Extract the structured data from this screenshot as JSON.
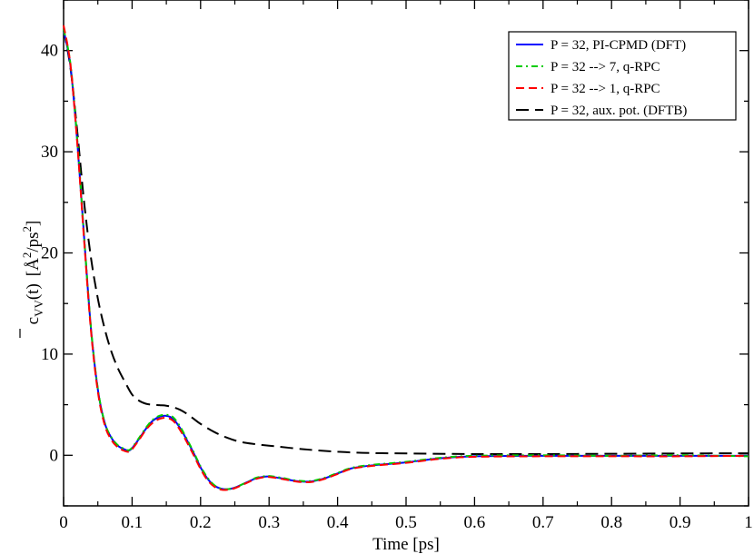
{
  "chart_data": {
    "type": "line",
    "xlabel": "Time [ps]",
    "ylabel": {
      "base": "c",
      "sub": "VV",
      "arg": "(t)",
      "unit_open": "[",
      "unit_angstrom": "Å",
      "unit_sup1": "2",
      "unit_mid": "/ps",
      "unit_sup2": "2",
      "unit_close": "]"
    },
    "xlim": [
      0,
      1
    ],
    "ylim": [
      -5,
      45
    ],
    "x_ticks": [
      0,
      0.1,
      0.2,
      0.3,
      0.4,
      0.5,
      0.6,
      0.7,
      0.8,
      0.9,
      1
    ],
    "x_tick_labels": [
      "0",
      "0.1",
      "0.2",
      "0.3",
      "0.4",
      "0.5",
      "0.6",
      "0.7",
      "0.8",
      "0.9",
      "1"
    ],
    "y_ticks": [
      0,
      10,
      20,
      30,
      40
    ],
    "y_tick_labels": [
      "0",
      "10",
      "20",
      "30",
      "40"
    ],
    "grid": false,
    "legend_position": "top-right",
    "series": [
      {
        "name": "P = 32, PI-CPMD (DFT)",
        "color": "#0000ff",
        "dash": "solid",
        "x": [
          0,
          0.01,
          0.02,
          0.03,
          0.04,
          0.05,
          0.06,
          0.07,
          0.08,
          0.09,
          0.095,
          0.1,
          0.11,
          0.12,
          0.13,
          0.14,
          0.15,
          0.16,
          0.17,
          0.18,
          0.19,
          0.2,
          0.21,
          0.22,
          0.23,
          0.24,
          0.25,
          0.26,
          0.27,
          0.28,
          0.29,
          0.3,
          0.32,
          0.34,
          0.36,
          0.38,
          0.4,
          0.42,
          0.45,
          0.5,
          0.55,
          0.6,
          0.7,
          0.8,
          0.9,
          1.0
        ],
        "values": [
          42.0,
          38.5,
          31.0,
          21.5,
          12.5,
          6.5,
          3.2,
          1.7,
          0.9,
          0.55,
          0.45,
          0.7,
          1.6,
          2.6,
          3.4,
          3.8,
          3.9,
          3.6,
          2.7,
          1.5,
          0.2,
          -1.2,
          -2.3,
          -3.0,
          -3.3,
          -3.35,
          -3.2,
          -2.9,
          -2.6,
          -2.3,
          -2.15,
          -2.1,
          -2.3,
          -2.55,
          -2.6,
          -2.3,
          -1.8,
          -1.3,
          -1.0,
          -0.7,
          -0.3,
          -0.1,
          -0.05,
          -0.05,
          -0.05,
          -0.05
        ]
      },
      {
        "name": "P = 32 --> 7, q-RPC",
        "color": "#00cc00",
        "dash": "dashdot",
        "x": [
          0,
          0.01,
          0.02,
          0.03,
          0.04,
          0.05,
          0.06,
          0.07,
          0.08,
          0.09,
          0.095,
          0.1,
          0.11,
          0.12,
          0.13,
          0.14,
          0.15,
          0.16,
          0.17,
          0.18,
          0.19,
          0.2,
          0.21,
          0.22,
          0.23,
          0.24,
          0.25,
          0.26,
          0.27,
          0.28,
          0.29,
          0.3,
          0.32,
          0.34,
          0.36,
          0.38,
          0.4,
          0.42,
          0.45,
          0.5,
          0.55,
          0.6,
          0.7,
          0.8,
          0.9,
          1.0
        ],
        "values": [
          42.1,
          38.7,
          31.2,
          21.6,
          12.6,
          6.6,
          3.25,
          1.75,
          0.95,
          0.6,
          0.5,
          0.75,
          1.7,
          2.7,
          3.5,
          3.9,
          4.0,
          3.75,
          2.85,
          1.6,
          0.3,
          -1.1,
          -2.2,
          -2.95,
          -3.3,
          -3.35,
          -3.2,
          -2.9,
          -2.6,
          -2.25,
          -2.1,
          -2.05,
          -2.25,
          -2.5,
          -2.55,
          -2.25,
          -1.75,
          -1.25,
          -0.95,
          -0.65,
          -0.25,
          -0.05,
          0.0,
          -0.05,
          0.0,
          -0.1
        ]
      },
      {
        "name": "P = 32 --> 1, q-RPC",
        "color": "#ff0000",
        "dash": "dashed",
        "x": [
          0,
          0.01,
          0.02,
          0.03,
          0.04,
          0.05,
          0.06,
          0.07,
          0.08,
          0.09,
          0.095,
          0.1,
          0.11,
          0.12,
          0.13,
          0.14,
          0.15,
          0.16,
          0.17,
          0.18,
          0.19,
          0.2,
          0.21,
          0.22,
          0.23,
          0.24,
          0.25,
          0.26,
          0.27,
          0.28,
          0.29,
          0.3,
          0.32,
          0.34,
          0.36,
          0.38,
          0.4,
          0.42,
          0.45,
          0.5,
          0.55,
          0.6,
          0.7,
          0.8,
          0.9,
          1.0
        ],
        "values": [
          42.5,
          38.6,
          30.8,
          21.2,
          12.3,
          6.3,
          3.0,
          1.5,
          0.75,
          0.4,
          0.35,
          0.6,
          1.5,
          2.5,
          3.2,
          3.6,
          3.7,
          3.4,
          2.5,
          1.3,
          0.0,
          -1.35,
          -2.45,
          -3.1,
          -3.4,
          -3.4,
          -3.25,
          -2.95,
          -2.65,
          -2.35,
          -2.2,
          -2.15,
          -2.35,
          -2.6,
          -2.65,
          -2.35,
          -1.85,
          -1.35,
          -1.05,
          -0.75,
          -0.35,
          -0.15,
          -0.1,
          -0.1,
          -0.1,
          -0.05
        ]
      },
      {
        "name": "P = 32, aux. pot. (DFTB)",
        "color": "#000000",
        "dash": "longdash",
        "x": [
          0,
          0.01,
          0.02,
          0.03,
          0.04,
          0.05,
          0.06,
          0.07,
          0.08,
          0.09,
          0.1,
          0.11,
          0.12,
          0.13,
          0.14,
          0.15,
          0.16,
          0.17,
          0.18,
          0.19,
          0.2,
          0.22,
          0.24,
          0.26,
          0.28,
          0.3,
          0.35,
          0.4,
          0.45,
          0.5,
          0.6,
          0.7,
          0.8,
          0.9,
          1.0
        ],
        "values": [
          42.0,
          38.3,
          32.0,
          25.0,
          19.5,
          15.5,
          12.5,
          10.2,
          8.5,
          7.2,
          6.0,
          5.4,
          5.1,
          5.0,
          4.95,
          4.9,
          4.75,
          4.5,
          4.1,
          3.6,
          3.1,
          2.3,
          1.7,
          1.3,
          1.1,
          0.95,
          0.6,
          0.35,
          0.22,
          0.18,
          0.12,
          0.12,
          0.15,
          0.18,
          0.2
        ]
      }
    ]
  }
}
